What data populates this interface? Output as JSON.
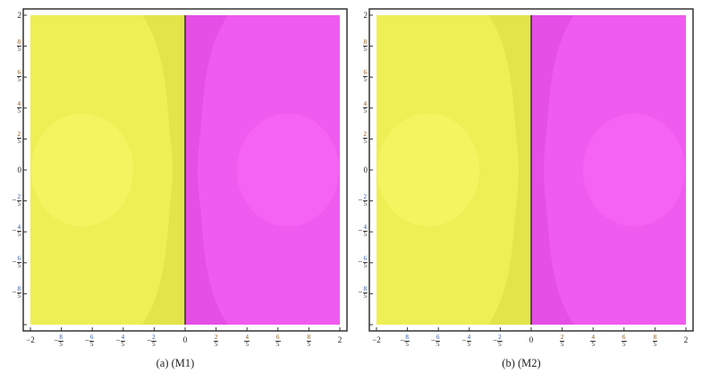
{
  "colors": {
    "yellow": "#eeee55",
    "yellow_dark": "#e3e34a",
    "yellow_light": "#f4f460",
    "magenta": "#e54fe5",
    "magenta_light": "#ef5bef",
    "magenta_circle": "#f563f5",
    "boundary": "#333333"
  },
  "chart_data": [
    {
      "type": "heatmap",
      "caption": "(a)  (M1)",
      "xlim": [
        -2,
        2
      ],
      "ylim": [
        -2,
        2
      ],
      "grid": false,
      "regions": [
        {
          "color": "yellow",
          "x_range": [
            -2,
            0
          ]
        },
        {
          "color": "magenta",
          "x_range": [
            0,
            2
          ]
        }
      ],
      "boundary_x": 0,
      "xticks": [
        {
          "v": -2,
          "t": "−2"
        },
        {
          "v": -1.6,
          "t": "−",
          "n": "8",
          "d": "5"
        },
        {
          "v": -1.2,
          "t": "−",
          "n": "6",
          "d": "5"
        },
        {
          "v": -0.8,
          "t": "−",
          "n": "4",
          "d": "5"
        },
        {
          "v": -0.4,
          "t": "−",
          "n": "2",
          "d": "5"
        },
        {
          "v": 0,
          "t": "0"
        },
        {
          "v": 0.4,
          "n": "2",
          "d": "5"
        },
        {
          "v": 0.8,
          "n": "4",
          "d": "5"
        },
        {
          "v": 1.2,
          "n": "6",
          "d": "5"
        },
        {
          "v": 1.6,
          "n": "8",
          "d": "5"
        },
        {
          "v": 2,
          "t": "2"
        }
      ],
      "yticks": [
        {
          "v": 2,
          "t": "2"
        },
        {
          "v": 1.6,
          "n": "8",
          "d": "5"
        },
        {
          "v": 1.2,
          "n": "6",
          "d": "5"
        },
        {
          "v": 0.8,
          "n": "4",
          "d": "5"
        },
        {
          "v": 0.4,
          "n": "2",
          "d": "5"
        },
        {
          "v": 0,
          "t": "0"
        },
        {
          "v": -0.4,
          "t": "−",
          "n": "2",
          "d": "5"
        },
        {
          "v": -0.8,
          "t": "−",
          "n": "4",
          "d": "5"
        },
        {
          "v": -1.2,
          "t": "−",
          "n": "6",
          "d": "5"
        },
        {
          "v": -1.6,
          "t": "−",
          "n": "8",
          "d": "5"
        },
        {
          "v": -2,
          "t": ""
        }
      ]
    },
    {
      "type": "heatmap",
      "caption": "(b)  (M2)",
      "xlim": [
        -2,
        2
      ],
      "ylim": [
        -2,
        2
      ],
      "grid": false,
      "regions": [
        {
          "color": "yellow",
          "x_range": [
            -2,
            0
          ]
        },
        {
          "color": "magenta",
          "x_range": [
            0,
            2
          ]
        }
      ],
      "boundary_x": 0,
      "xticks": [
        {
          "v": -2,
          "t": "−2"
        },
        {
          "v": -1.6,
          "t": "−",
          "n": "8",
          "d": "5"
        },
        {
          "v": -1.2,
          "t": "−",
          "n": "6",
          "d": "5"
        },
        {
          "v": -0.8,
          "t": "−",
          "n": "4",
          "d": "5"
        },
        {
          "v": -0.4,
          "t": "−",
          "n": "2",
          "d": "5"
        },
        {
          "v": 0,
          "t": "0"
        },
        {
          "v": 0.4,
          "n": "2",
          "d": "5"
        },
        {
          "v": 0.8,
          "n": "4",
          "d": "5"
        },
        {
          "v": 1.2,
          "n": "6",
          "d": "5"
        },
        {
          "v": 1.6,
          "n": "8",
          "d": "5"
        },
        {
          "v": 2,
          "t": "2"
        }
      ],
      "yticks": [
        {
          "v": 2,
          "t": "2"
        },
        {
          "v": 1.6,
          "n": "8",
          "d": "5"
        },
        {
          "v": 1.2,
          "n": "6",
          "d": "5"
        },
        {
          "v": 0.8,
          "n": "4",
          "d": "5"
        },
        {
          "v": 0.4,
          "n": "2",
          "d": "5"
        },
        {
          "v": 0,
          "t": "0"
        },
        {
          "v": -0.4,
          "t": "−",
          "n": "2",
          "d": "5"
        },
        {
          "v": -0.8,
          "t": "−",
          "n": "4",
          "d": "5"
        },
        {
          "v": -1.2,
          "t": "−",
          "n": "6",
          "d": "5"
        },
        {
          "v": -1.6,
          "t": "−",
          "n": "8",
          "d": "5"
        },
        {
          "v": -2,
          "t": ""
        }
      ]
    }
  ]
}
